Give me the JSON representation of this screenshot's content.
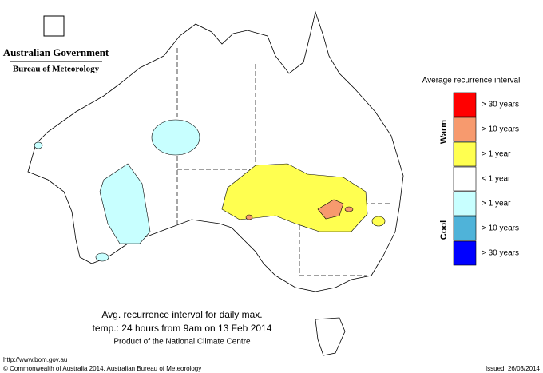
{
  "header": {
    "title": "Australian Government",
    "subtitle": "Bureau of Meteorology"
  },
  "legend": {
    "title": "Average recurrence interval",
    "warm": "Warm",
    "cool": "Cool",
    "items": [
      {
        "label": "> 30 years",
        "color": "#ff0000"
      },
      {
        "label": "> 10 years",
        "color": "#f79a6e"
      },
      {
        "label": "> 1 year",
        "color": "#ffff50"
      },
      {
        "label": "< 1 year",
        "color": "#ffffff"
      },
      {
        "label": "> 1 year",
        "color": "#c8ffff"
      },
      {
        "label": "> 10 years",
        "color": "#4fb3d9"
      },
      {
        "label": "> 30 years",
        "color": "#0000ff"
      }
    ]
  },
  "caption": {
    "line1": "Avg. recurrence interval for daily max.",
    "line2": "temp.: 24 hours from 9am on 13 Feb 2014",
    "line3": "Product of the National Climate Centre"
  },
  "footer": {
    "url": "http://www.bom.gov.au",
    "copyright": "© Commonwealth of Australia 2014, Australian Bureau of Meteorology",
    "issued": "Issued: 26/03/2014"
  }
}
